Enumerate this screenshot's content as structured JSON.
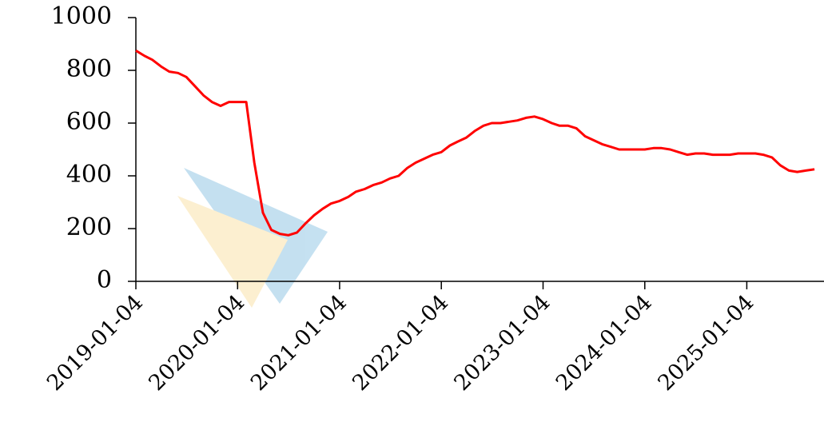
{
  "chart_data": {
    "type": "line",
    "x": [
      "2019-01-04",
      "2019-02-04",
      "2019-03-04",
      "2019-04-04",
      "2019-05-04",
      "2019-06-04",
      "2019-07-04",
      "2019-08-04",
      "2019-09-04",
      "2019-10-04",
      "2019-11-04",
      "2019-12-04",
      "2020-01-04",
      "2020-02-04",
      "2020-03-04",
      "2020-04-04",
      "2020-05-04",
      "2020-06-04",
      "2020-07-04",
      "2020-08-04",
      "2020-09-04",
      "2020-10-04",
      "2020-11-04",
      "2020-12-04",
      "2021-01-04",
      "2021-02-04",
      "2021-03-04",
      "2021-04-04",
      "2021-05-04",
      "2021-06-04",
      "2021-07-04",
      "2021-08-04",
      "2021-09-04",
      "2021-10-04",
      "2021-11-04",
      "2021-12-04",
      "2022-01-04",
      "2022-02-04",
      "2022-03-04",
      "2022-04-04",
      "2022-05-04",
      "2022-06-04",
      "2022-07-04",
      "2022-08-04",
      "2022-09-04",
      "2022-10-04",
      "2022-11-04",
      "2022-12-04",
      "2023-01-04",
      "2023-02-04",
      "2023-03-04",
      "2023-04-04",
      "2023-05-04",
      "2023-06-04",
      "2023-07-04",
      "2023-08-04",
      "2023-09-04",
      "2023-10-04",
      "2023-11-04",
      "2023-12-04",
      "2024-01-04",
      "2024-02-04",
      "2024-03-04",
      "2024-04-04",
      "2024-05-04",
      "2024-06-04",
      "2024-07-04",
      "2024-08-04",
      "2024-09-04",
      "2024-10-04",
      "2024-11-04",
      "2024-12-04",
      "2025-01-04",
      "2025-02-04",
      "2025-03-04",
      "2025-04-04",
      "2025-05-04",
      "2025-06-04",
      "2025-07-04",
      "2025-08-04",
      "2025-09-04"
    ],
    "series": [
      {
        "color": "#ff0000",
        "values": [
          875,
          855,
          840,
          815,
          795,
          790,
          775,
          740,
          705,
          680,
          665,
          680,
          680,
          680,
          450,
          260,
          195,
          180,
          175,
          185,
          220,
          250,
          275,
          295,
          305,
          320,
          340,
          350,
          365,
          375,
          390,
          400,
          430,
          450,
          465,
          480,
          490,
          515,
          530,
          545,
          570,
          590,
          600,
          600,
          605,
          610,
          620,
          625,
          615,
          600,
          590,
          590,
          580,
          550,
          535,
          520,
          510,
          500,
          500,
          500,
          500,
          505,
          505,
          500,
          490,
          480,
          485,
          485,
          480,
          480,
          480,
          485,
          485,
          485,
          480,
          470,
          440,
          420,
          415,
          420,
          425
        ]
      }
    ],
    "xlim": [
      "2019-01-04",
      "2025-10-08"
    ],
    "xticks": [
      "2019-01-04",
      "2020-01-04",
      "2021-01-04",
      "2022-01-04",
      "2023-01-04",
      "2024-01-04",
      "2025-01-04"
    ],
    "ylim": [
      0,
      1000
    ],
    "yticks": [
      0,
      200,
      400,
      600,
      800,
      1000
    ]
  }
}
